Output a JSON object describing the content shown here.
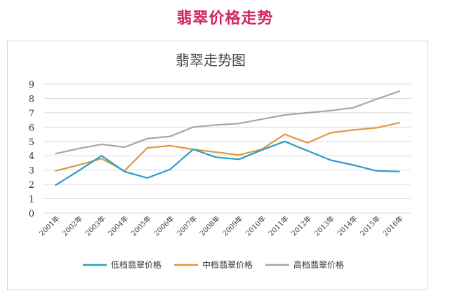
{
  "page": {
    "title": "翡翠价格走势"
  },
  "colors": {
    "title": "#d3265f",
    "low": "#2a9dc7",
    "mid": "#dd9a3e",
    "high": "#a6a6a6",
    "grid": "#dcdcdc"
  },
  "chart_data": {
    "type": "line",
    "title": "翡翠走势图",
    "xlabel": "",
    "ylabel": "",
    "categories": [
      "2001年",
      "2002年",
      "2003年",
      "2004年",
      "2005年",
      "2006年",
      "2007年",
      "2008年",
      "2009年",
      "2010年",
      "2011年",
      "2012年",
      "2013年",
      "2014年",
      "2015年",
      "2016年"
    ],
    "y_ticks": [
      "0",
      "1",
      "2",
      "3",
      "4",
      "5",
      "6",
      "7",
      "8",
      "9"
    ],
    "ylim": [
      0,
      9
    ],
    "grid": true,
    "legend_position": "bottom",
    "series": [
      {
        "name": "低档翡翠价格",
        "color": "#2a9dc7",
        "values": [
          1.95,
          2.95,
          4.0,
          2.9,
          2.45,
          3.05,
          4.45,
          3.9,
          3.75,
          4.4,
          5.0,
          4.35,
          3.7,
          3.35,
          2.95,
          2.9
        ]
      },
      {
        "name": "中档翡翠价格",
        "color": "#dd9a3e",
        "values": [
          2.95,
          3.35,
          3.8,
          2.95,
          4.55,
          4.7,
          4.45,
          4.25,
          4.05,
          4.45,
          5.5,
          4.9,
          5.6,
          5.8,
          5.95,
          6.3
        ]
      },
      {
        "name": "高档翡翠价格",
        "color": "#a6a6a6",
        "values": [
          4.15,
          4.5,
          4.8,
          4.6,
          5.2,
          5.35,
          6.0,
          6.15,
          6.25,
          6.55,
          6.85,
          7.0,
          7.15,
          7.35,
          7.95,
          8.5
        ]
      }
    ]
  }
}
